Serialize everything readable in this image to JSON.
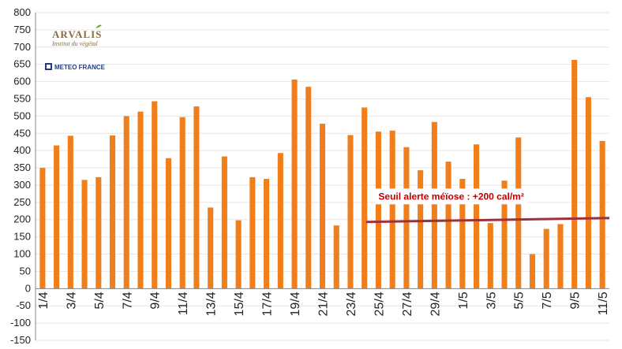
{
  "logos": {
    "arvalis_name": "ARVALIS",
    "arvalis_tagline": "Institut du végétal",
    "meteo_name": "METEO FRANCE"
  },
  "colors": {
    "bar": "#f07f1b",
    "threshold_line": "#a0303a",
    "annotation": "#c00000",
    "grid": "#e6e6e6",
    "axis": "#888888"
  },
  "chart_data": {
    "type": "bar",
    "ylim": [
      -150,
      800
    ],
    "ytick_step": 50,
    "ytick_labels": [
      "-150",
      "-100",
      "-50",
      "0",
      "50",
      "100",
      "150",
      "200",
      "250",
      "300",
      "350",
      "400",
      "450",
      "500",
      "550",
      "600",
      "650",
      "700",
      "750",
      "800"
    ],
    "categories": [
      "1/4",
      "2/4",
      "3/4",
      "4/4",
      "5/4",
      "6/4",
      "7/4",
      "8/4",
      "9/4",
      "10/4",
      "11/4",
      "12/4",
      "13/4",
      "14/4",
      "15/4",
      "16/4",
      "17/4",
      "18/4",
      "19/4",
      "20/4",
      "21/4",
      "22/4",
      "23/4",
      "24/4",
      "25/4",
      "26/4",
      "27/4",
      "28/4",
      "29/4",
      "30/4",
      "1/5",
      "2/5",
      "3/5",
      "4/5",
      "5/5",
      "6/5",
      "7/5",
      "8/5",
      "9/5",
      "10/5",
      "11/5"
    ],
    "x_tick_labels": [
      "1/4",
      "3/4",
      "5/4",
      "7/4",
      "9/4",
      "11/4",
      "13/4",
      "15/4",
      "17/4",
      "19/4",
      "21/4",
      "23/4",
      "25/4",
      "27/4",
      "29/4",
      "1/5",
      "3/5",
      "5/5",
      "7/5",
      "9/5",
      "11/5"
    ],
    "x_tick_every": 2,
    "values": [
      350,
      415,
      443,
      315,
      323,
      444,
      500,
      513,
      543,
      378,
      497,
      528,
      235,
      383,
      198,
      323,
      318,
      393,
      606,
      585,
      478,
      183,
      445,
      525,
      455,
      458,
      410,
      343,
      483,
      368,
      318,
      418,
      190,
      313,
      438,
      100,
      173,
      187,
      663,
      555,
      428
    ],
    "threshold": {
      "value": 200,
      "label": "Seuil alerte méïose : +200 cal/m²"
    },
    "grid": "horizontal",
    "legend": "none"
  }
}
